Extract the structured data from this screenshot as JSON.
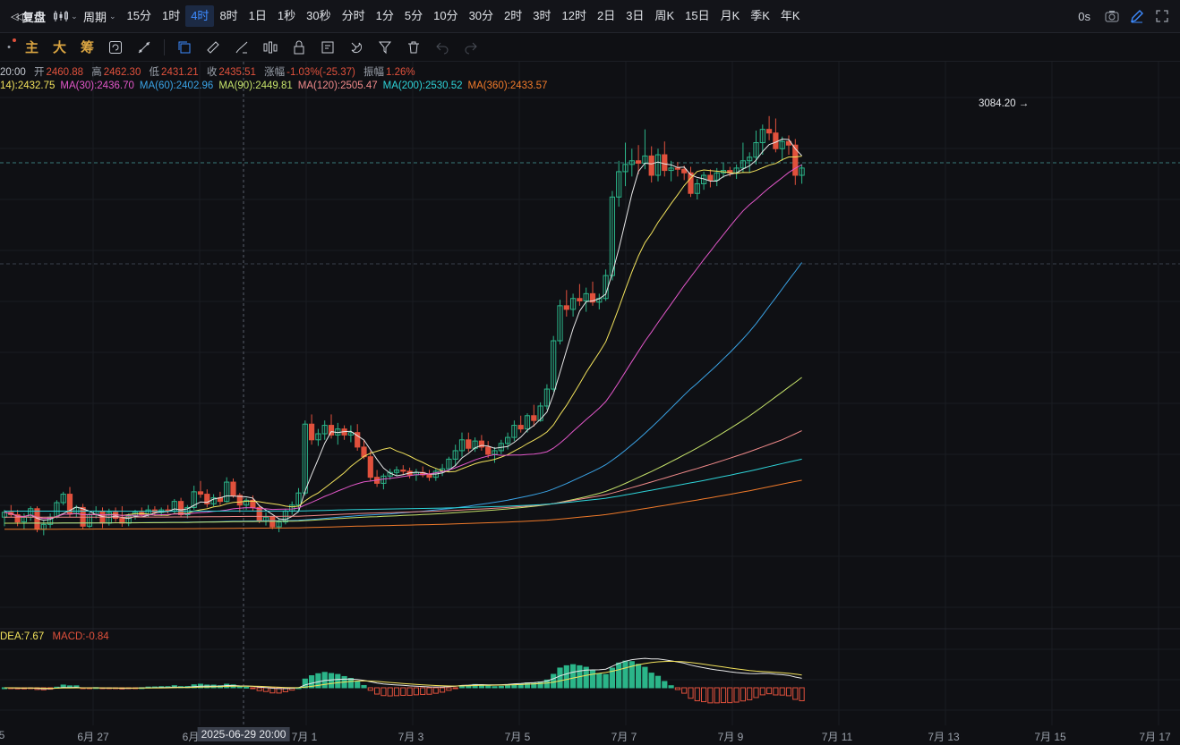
{
  "toolbar": {
    "replay_label": "复盘",
    "period_label": "周期",
    "timeframes": [
      "15分",
      "1时",
      "4时",
      "8时",
      "1日",
      "1秒",
      "30秒",
      "分时",
      "1分",
      "5分",
      "10分",
      "30分",
      "2时",
      "3时",
      "12时",
      "2日",
      "3日",
      "周K",
      "15日",
      "月K",
      "季K",
      "年K"
    ],
    "active_timeframe": "4时",
    "countdown": "0s"
  },
  "indicators": {
    "main": "主",
    "big": "大",
    "chips": "筹"
  },
  "ohlc": {
    "time_fragment": "20:00",
    "open_label": "开",
    "open": "2460.88",
    "high_label": "高",
    "high": "2462.30",
    "low_label": "低",
    "low": "2431.21",
    "close_label": "收",
    "close": "2435.51",
    "change_label": "涨幅",
    "change": "-1.03%(-25.37)",
    "amp_label": "振幅",
    "amp": "1.26%"
  },
  "ma_legend": [
    {
      "text": "14):2432.75",
      "color": "#f2e25c"
    },
    {
      "text": "MA(30):2436.70",
      "color": "#e257c9"
    },
    {
      "text": "MA(60):2402.96",
      "color": "#3aa3e6"
    },
    {
      "text": "MA(90):2449.81",
      "color": "#c5e26a"
    },
    {
      "text": "MA(120):2505.47",
      "color": "#f08a8a"
    },
    {
      "text": "MA(200):2530.52",
      "color": "#2ed3d8"
    },
    {
      "text": "MA(360):2433.57",
      "color": "#f07a2a"
    }
  ],
  "macd_legend": {
    "dea": "DEA:7.67",
    "macd": "MACD:-0.84"
  },
  "peak_label": "3084.20 →",
  "x_axis": {
    "ticks": [
      "5",
      "6月 27",
      "6月",
      "7月 1",
      "7月 3",
      "7月 5",
      "7月 7",
      "7月 9",
      "7月 11",
      "7月 13",
      "7月 15",
      "7月 17"
    ],
    "cursor_label": "2025-06-29 20:00"
  },
  "colors": {
    "up": "#2bb589",
    "down": "#e0513c",
    "accent": "#3d8bff"
  },
  "chart_data": {
    "type": "candlestick",
    "start": "2025-06-26 00:00",
    "interval": "4h",
    "candles": [
      [
        2420,
        2432,
        2405,
        2428
      ],
      [
        2428,
        2440,
        2420,
        2424
      ],
      [
        2424,
        2432,
        2405,
        2412
      ],
      [
        2412,
        2426,
        2400,
        2420
      ],
      [
        2420,
        2438,
        2414,
        2434
      ],
      [
        2434,
        2438,
        2395,
        2400
      ],
      [
        2400,
        2414,
        2390,
        2408
      ],
      [
        2408,
        2426,
        2402,
        2420
      ],
      [
        2420,
        2448,
        2418,
        2444
      ],
      [
        2444,
        2462,
        2440,
        2458
      ],
      [
        2458,
        2470,
        2420,
        2426
      ],
      [
        2426,
        2440,
        2420,
        2436
      ],
      [
        2436,
        2442,
        2400,
        2405
      ],
      [
        2405,
        2428,
        2402,
        2424
      ],
      [
        2424,
        2438,
        2418,
        2430
      ],
      [
        2430,
        2436,
        2402,
        2410
      ],
      [
        2410,
        2434,
        2406,
        2428
      ],
      [
        2428,
        2436,
        2412,
        2418
      ],
      [
        2418,
        2438,
        2404,
        2410
      ],
      [
        2410,
        2426,
        2405,
        2422
      ],
      [
        2422,
        2432,
        2416,
        2428
      ],
      [
        2428,
        2436,
        2420,
        2424
      ],
      [
        2424,
        2440,
        2420,
        2432
      ],
      [
        2432,
        2438,
        2424,
        2428
      ],
      [
        2428,
        2436,
        2422,
        2432
      ],
      [
        2432,
        2440,
        2426,
        2430
      ],
      [
        2430,
        2450,
        2426,
        2446
      ],
      [
        2446,
        2452,
        2420,
        2424
      ],
      [
        2424,
        2440,
        2418,
        2436
      ],
      [
        2436,
        2472,
        2432,
        2462
      ],
      [
        2462,
        2480,
        2452,
        2458
      ],
      [
        2458,
        2466,
        2436,
        2442
      ],
      [
        2442,
        2458,
        2438,
        2452
      ],
      [
        2452,
        2462,
        2440,
        2446
      ],
      [
        2446,
        2486,
        2444,
        2478
      ],
      [
        2478,
        2484,
        2452,
        2456
      ],
      [
        2456,
        2460,
        2428,
        2440
      ],
      [
        2440,
        2452,
        2432,
        2448
      ],
      [
        2448,
        2456,
        2430,
        2436
      ],
      [
        2436,
        2440,
        2410,
        2414
      ],
      [
        2414,
        2428,
        2406,
        2420
      ],
      [
        2420,
        2422,
        2400,
        2404
      ],
      [
        2404,
        2418,
        2395,
        2412
      ],
      [
        2412,
        2434,
        2408,
        2430
      ],
      [
        2430,
        2446,
        2424,
        2440
      ],
      [
        2440,
        2468,
        2430,
        2460
      ],
      [
        2460,
        2580,
        2456,
        2574
      ],
      [
        2574,
        2590,
        2540,
        2548
      ],
      [
        2548,
        2566,
        2538,
        2558
      ],
      [
        2558,
        2580,
        2548,
        2572
      ],
      [
        2572,
        2590,
        2550,
        2556
      ],
      [
        2556,
        2576,
        2540,
        2566
      ],
      [
        2566,
        2572,
        2548,
        2556
      ],
      [
        2556,
        2572,
        2544,
        2560
      ],
      [
        2560,
        2574,
        2530,
        2536
      ],
      [
        2536,
        2548,
        2516,
        2520
      ],
      [
        2520,
        2530,
        2480,
        2486
      ],
      [
        2486,
        2498,
        2470,
        2476
      ],
      [
        2476,
        2492,
        2466,
        2488
      ],
      [
        2488,
        2500,
        2482,
        2494
      ],
      [
        2494,
        2504,
        2488,
        2498
      ],
      [
        2498,
        2506,
        2490,
        2496
      ],
      [
        2496,
        2502,
        2484,
        2490
      ],
      [
        2490,
        2500,
        2480,
        2494
      ],
      [
        2494,
        2504,
        2486,
        2490
      ],
      [
        2490,
        2498,
        2480,
        2486
      ],
      [
        2486,
        2500,
        2480,
        2496
      ],
      [
        2496,
        2508,
        2488,
        2500
      ],
      [
        2500,
        2520,
        2494,
        2516
      ],
      [
        2516,
        2540,
        2504,
        2530
      ],
      [
        2530,
        2560,
        2520,
        2548
      ],
      [
        2548,
        2560,
        2528,
        2534
      ],
      [
        2534,
        2552,
        2528,
        2546
      ],
      [
        2546,
        2556,
        2530,
        2536
      ],
      [
        2536,
        2546,
        2518,
        2524
      ],
      [
        2524,
        2536,
        2510,
        2530
      ],
      [
        2530,
        2548,
        2524,
        2542
      ],
      [
        2542,
        2560,
        2532,
        2552
      ],
      [
        2552,
        2580,
        2546,
        2572
      ],
      [
        2572,
        2588,
        2560,
        2566
      ],
      [
        2566,
        2592,
        2560,
        2588
      ],
      [
        2588,
        2606,
        2570,
        2580
      ],
      [
        2580,
        2610,
        2578,
        2604
      ],
      [
        2604,
        2640,
        2598,
        2632
      ],
      [
        2632,
        2720,
        2628,
        2712
      ],
      [
        2712,
        2780,
        2706,
        2770
      ],
      [
        2770,
        2796,
        2752,
        2764
      ],
      [
        2764,
        2790,
        2752,
        2782
      ],
      [
        2782,
        2806,
        2770,
        2778
      ],
      [
        2778,
        2800,
        2760,
        2790
      ],
      [
        2790,
        2810,
        2770,
        2776
      ],
      [
        2776,
        2790,
        2764,
        2782
      ],
      [
        2782,
        2830,
        2778,
        2820
      ],
      [
        2820,
        2960,
        2812,
        2950
      ],
      [
        2950,
        3010,
        2934,
        2992
      ],
      [
        2992,
        3040,
        2968,
        3004
      ],
      [
        3004,
        3030,
        2984,
        3010
      ],
      [
        3010,
        3036,
        2988,
        3006
      ],
      [
        3006,
        3062,
        2996,
        3018
      ],
      [
        3018,
        3034,
        2974,
        2986
      ],
      [
        2986,
        3030,
        2976,
        3020
      ],
      [
        3020,
        3042,
        2984,
        2994
      ],
      [
        2994,
        3010,
        2976,
        2998
      ],
      [
        2998,
        3008,
        2984,
        2996
      ],
      [
        2996,
        3002,
        2978,
        2990
      ],
      [
        2990,
        3000,
        2950,
        2956
      ],
      [
        2956,
        2980,
        2946,
        2972
      ],
      [
        2972,
        2992,
        2962,
        2986
      ],
      [
        2986,
        2996,
        2966,
        2978
      ],
      [
        2978,
        2998,
        2968,
        2990
      ],
      [
        2990,
        3006,
        2982,
        2994
      ],
      [
        2994,
        3000,
        2984,
        2990
      ],
      [
        2990,
        3004,
        2980,
        2998
      ],
      [
        2998,
        3040,
        2990,
        3010
      ],
      [
        3010,
        3024,
        2990,
        3016
      ],
      [
        3016,
        3060,
        3004,
        3040
      ],
      [
        3040,
        3070,
        3020,
        3062
      ],
      [
        3062,
        3084,
        3044,
        3056
      ],
      [
        3056,
        3080,
        3024,
        3030
      ],
      [
        3030,
        3050,
        3010,
        3042
      ],
      [
        3042,
        3052,
        3020,
        3036
      ],
      [
        3036,
        3046,
        2970,
        2986
      ],
      [
        2986,
        3004,
        2972,
        2998
      ]
    ],
    "ma_series": [
      "MA(14)",
      "MA(30)",
      "MA(60)",
      "MA(90)",
      "MA(120)",
      "MA(200)",
      "MA(360)"
    ],
    "macd": {
      "dea": 7.67,
      "macd": -0.84
    }
  }
}
